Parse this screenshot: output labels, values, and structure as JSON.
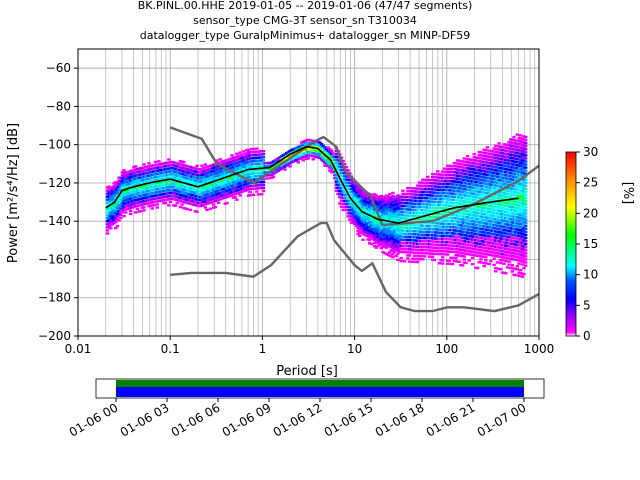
{
  "chart_data": {
    "type": "heatmap",
    "title_lines": [
      "BK.PINL.00.HHE   2019-01-05 -- 2019-01-06  (47/47 segments)",
      "sensor_type CMG-3T sensor_sn T310034",
      "datalogger_type GuralpMinimus+ datalogger_sn MINP-DF59"
    ],
    "xlabel": "Period [s]",
    "ylabel": "Power [m²/s⁴/Hz] [dB]",
    "x_scale": "log",
    "xlim": [
      0.01,
      1000
    ],
    "ylim": [
      -200,
      -50
    ],
    "x_ticks": [
      0.01,
      0.1,
      1,
      10,
      100,
      1000
    ],
    "x_tick_labels": [
      "0.01",
      "0.1",
      "1",
      "10",
      "100",
      "1000"
    ],
    "y_ticks": [
      -200,
      -180,
      -160,
      -140,
      -120,
      -100,
      -80,
      -60
    ],
    "y_tick_labels": [
      "−200",
      "−180",
      "−160",
      "−140",
      "−120",
      "−100",
      "−80",
      "−60"
    ],
    "grid": true,
    "colorbar": {
      "label": "[%]",
      "range": [
        0,
        30
      ],
      "ticks": [
        0,
        5,
        10,
        15,
        20,
        25,
        30
      ],
      "tick_labels": [
        "0",
        "5",
        "10",
        "15",
        "20",
        "25",
        "30"
      ]
    },
    "noise_model_high": [
      [
        0.1,
        -91
      ],
      [
        0.22,
        -97
      ],
      [
        0.32,
        -110
      ],
      [
        0.8,
        -120
      ],
      [
        3.8,
        -98
      ],
      [
        4.6,
        -96
      ],
      [
        6.3,
        -101
      ],
      [
        7.9,
        -114
      ],
      [
        15,
        -127
      ],
      [
        20,
        -142
      ],
      [
        70,
        -140
      ],
      [
        180,
        -132
      ],
      [
        600,
        -119
      ],
      [
        1000,
        -111
      ]
    ],
    "noise_model_low": [
      [
        0.1,
        -168
      ],
      [
        0.17,
        -167
      ],
      [
        0.4,
        -167
      ],
      [
        0.8,
        -169
      ],
      [
        1.24,
        -163
      ],
      [
        2.4,
        -148
      ],
      [
        4.3,
        -141
      ],
      [
        5.0,
        -141
      ],
      [
        6.0,
        -150
      ],
      [
        10,
        -163
      ],
      [
        12,
        -166
      ],
      [
        15.6,
        -162
      ],
      [
        21.9,
        -177
      ],
      [
        31.6,
        -185
      ],
      [
        45,
        -187
      ],
      [
        70,
        -187
      ],
      [
        101,
        -185
      ],
      [
        154,
        -185
      ],
      [
        328,
        -187
      ],
      [
        600,
        -184
      ],
      [
        1000,
        -178
      ]
    ],
    "mean_curve": [
      [
        0.02,
        -133
      ],
      [
        0.025,
        -130
      ],
      [
        0.03,
        -124
      ],
      [
        0.04,
        -122
      ],
      [
        0.06,
        -120
      ],
      [
        0.1,
        -118
      ],
      [
        0.2,
        -122
      ],
      [
        0.4,
        -117
      ],
      [
        0.7,
        -113
      ],
      [
        1.2,
        -112
      ],
      [
        2.0,
        -105
      ],
      [
        3.0,
        -101
      ],
      [
        4.0,
        -102
      ],
      [
        5.5,
        -108
      ],
      [
        7.0,
        -118
      ],
      [
        9.0,
        -128
      ],
      [
        12,
        -135
      ],
      [
        18,
        -139
      ],
      [
        30,
        -141
      ],
      [
        60,
        -137
      ],
      [
        120,
        -133
      ],
      [
        300,
        -130
      ],
      [
        600,
        -128
      ]
    ],
    "time_coverage": {
      "tick_labels": [
        "01-06 00",
        "01-06 03",
        "01-06 06",
        "01-06 09",
        "01-06 12",
        "01-06 15",
        "01-06 18",
        "01-06 21",
        "01-07 00"
      ]
    }
  }
}
